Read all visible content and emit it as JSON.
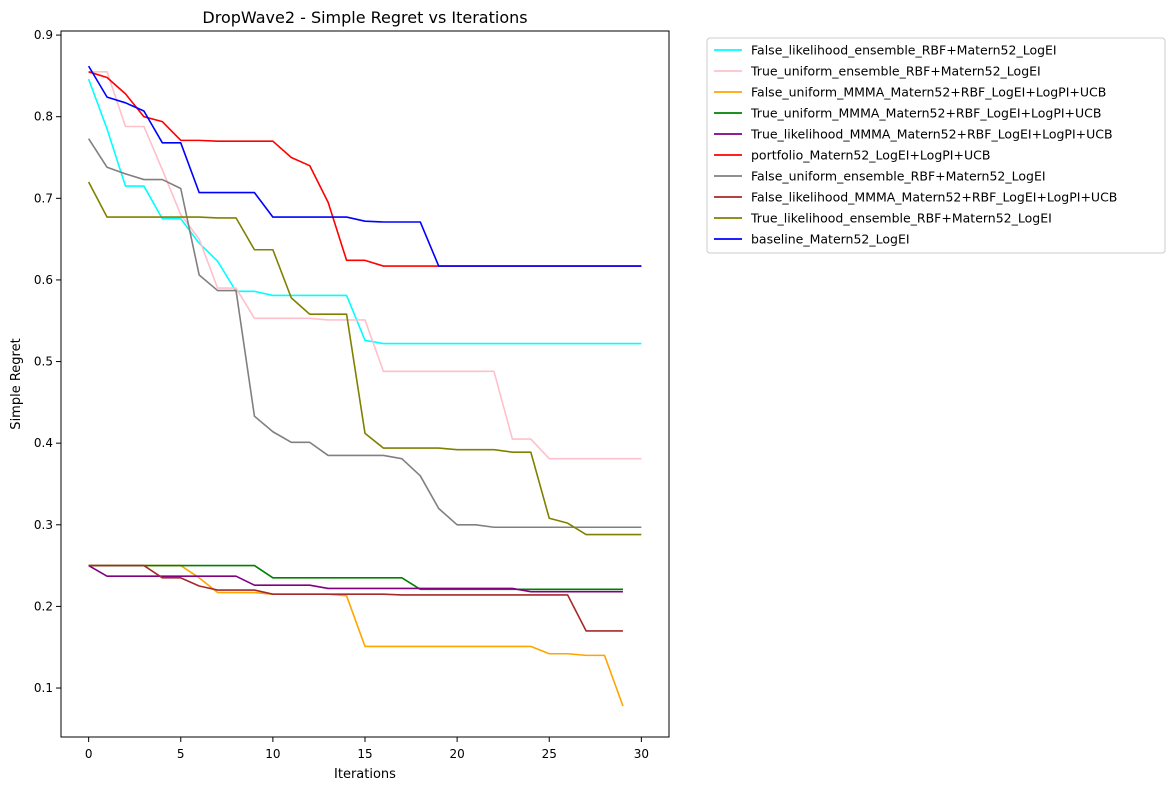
{
  "chart_data": {
    "type": "line",
    "title": "DropWave2 - Simple Regret vs Iterations",
    "xlabel": "Iterations",
    "ylabel": "Simple Regret",
    "xlim": [
      -1.5,
      31.5
    ],
    "ylim": [
      0.04,
      0.905
    ],
    "xticks": [
      0,
      5,
      10,
      15,
      20,
      25,
      30
    ],
    "yticks": [
      0.1,
      0.2,
      0.3,
      0.4,
      0.5,
      0.6,
      0.7,
      0.8,
      0.9
    ],
    "ytick_labels": [
      "0.1",
      "0.2",
      "0.3",
      "0.4",
      "0.5",
      "0.6",
      "0.7",
      "0.8",
      "0.9"
    ],
    "grid": false,
    "legend_position": "outside-top-right",
    "series": [
      {
        "name": "False_likelihood_ensemble_RBF+Matern52_LogEI",
        "color": "#00ffff",
        "x": [
          0,
          1,
          2,
          3,
          4,
          5,
          6,
          7,
          8,
          9,
          10,
          11,
          12,
          13,
          14,
          15,
          16,
          17,
          18,
          19,
          20,
          21,
          22,
          23,
          24,
          25,
          26,
          27,
          28,
          29,
          30
        ],
        "y": [
          0.846,
          0.785,
          0.715,
          0.715,
          0.675,
          0.675,
          0.645,
          0.623,
          0.586,
          0.586,
          0.581,
          0.581,
          0.581,
          0.581,
          0.581,
          0.526,
          0.522,
          0.522,
          0.522,
          0.522,
          0.522,
          0.522,
          0.522,
          0.522,
          0.522,
          0.522,
          0.522,
          0.522,
          0.522,
          0.522,
          0.522
        ]
      },
      {
        "name": "True_uniform_ensemble_RBF+Matern52_LogEI",
        "color": "#ffc0cb",
        "x": [
          0,
          1,
          2,
          3,
          4,
          5,
          6,
          7,
          8,
          9,
          10,
          11,
          12,
          13,
          14,
          15,
          16,
          17,
          18,
          19,
          20,
          21,
          22,
          23,
          24,
          25,
          26,
          27,
          28,
          29,
          30
        ],
        "y": [
          0.855,
          0.855,
          0.788,
          0.788,
          0.735,
          0.68,
          0.65,
          0.59,
          0.59,
          0.553,
          0.553,
          0.553,
          0.553,
          0.551,
          0.551,
          0.551,
          0.488,
          0.488,
          0.488,
          0.488,
          0.488,
          0.488,
          0.488,
          0.405,
          0.405,
          0.381,
          0.381,
          0.381,
          0.381,
          0.381,
          0.381
        ]
      },
      {
        "name": "False_uniform_MMMA_Matern52+RBF_LogEI+LogPI+UCB",
        "color": "#ffa500",
        "x": [
          0,
          1,
          2,
          3,
          4,
          5,
          6,
          7,
          8,
          9,
          10,
          11,
          12,
          13,
          14,
          15,
          16,
          17,
          18,
          19,
          20,
          21,
          22,
          23,
          24,
          25,
          26,
          27,
          28,
          29
        ],
        "y": [
          0.25,
          0.25,
          0.25,
          0.25,
          0.25,
          0.25,
          0.235,
          0.217,
          0.217,
          0.217,
          0.215,
          0.215,
          0.215,
          0.215,
          0.213,
          0.151,
          0.151,
          0.151,
          0.151,
          0.151,
          0.151,
          0.151,
          0.151,
          0.151,
          0.151,
          0.142,
          0.142,
          0.14,
          0.14,
          0.078
        ]
      },
      {
        "name": "True_uniform_MMMA_Matern52+RBF_LogEI+LogPI+UCB",
        "color": "#008000",
        "x": [
          0,
          1,
          2,
          3,
          4,
          5,
          6,
          7,
          8,
          9,
          10,
          11,
          12,
          13,
          14,
          15,
          16,
          17,
          18,
          19,
          20,
          21,
          22,
          23,
          24,
          25,
          26,
          27,
          28,
          29
        ],
        "y": [
          0.25,
          0.25,
          0.25,
          0.25,
          0.25,
          0.25,
          0.25,
          0.25,
          0.25,
          0.25,
          0.235,
          0.235,
          0.235,
          0.235,
          0.235,
          0.235,
          0.235,
          0.235,
          0.221,
          0.221,
          0.221,
          0.221,
          0.221,
          0.221,
          0.221,
          0.221,
          0.221,
          0.221,
          0.221,
          0.221
        ]
      },
      {
        "name": "True_likelihood_MMMA_Matern52+RBF_LogEI+LogPI+UCB",
        "color": "#800080",
        "x": [
          0,
          1,
          2,
          3,
          4,
          5,
          6,
          7,
          8,
          9,
          10,
          11,
          12,
          13,
          14,
          15,
          16,
          17,
          18,
          19,
          20,
          21,
          22,
          23,
          24,
          25,
          26,
          27,
          28,
          29
        ],
        "y": [
          0.25,
          0.237,
          0.237,
          0.237,
          0.237,
          0.237,
          0.237,
          0.237,
          0.237,
          0.226,
          0.226,
          0.226,
          0.226,
          0.222,
          0.222,
          0.222,
          0.222,
          0.222,
          0.222,
          0.222,
          0.222,
          0.222,
          0.222,
          0.222,
          0.218,
          0.218,
          0.218,
          0.218,
          0.218,
          0.218
        ]
      },
      {
        "name": "portfolio_Matern52_LogEI+LogPI+UCB",
        "color": "#ff0000",
        "x": [
          0,
          1,
          2,
          3,
          4,
          5,
          6,
          7,
          8,
          9,
          10,
          11,
          12,
          13,
          14,
          15,
          16,
          17,
          18,
          19,
          20,
          21,
          22,
          23,
          24,
          25,
          26,
          27,
          28,
          29,
          30
        ],
        "y": [
          0.855,
          0.848,
          0.828,
          0.8,
          0.794,
          0.771,
          0.771,
          0.77,
          0.77,
          0.77,
          0.77,
          0.75,
          0.74,
          0.695,
          0.624,
          0.624,
          0.617,
          0.617,
          0.617,
          0.617,
          0.617,
          0.617,
          0.617,
          0.617,
          0.617,
          0.617,
          0.617,
          0.617,
          0.617,
          0.617,
          0.617
        ]
      },
      {
        "name": "False_uniform_ensemble_RBF+Matern52_LogEI",
        "color": "#808080",
        "x": [
          0,
          1,
          2,
          3,
          4,
          5,
          6,
          7,
          8,
          9,
          10,
          11,
          12,
          13,
          14,
          15,
          16,
          17,
          18,
          19,
          20,
          21,
          22,
          23,
          24,
          25,
          26,
          27,
          28,
          29,
          30
        ],
        "y": [
          0.773,
          0.738,
          0.73,
          0.723,
          0.723,
          0.712,
          0.606,
          0.587,
          0.587,
          0.433,
          0.414,
          0.401,
          0.401,
          0.385,
          0.385,
          0.385,
          0.385,
          0.381,
          0.36,
          0.32,
          0.3,
          0.3,
          0.297,
          0.297,
          0.297,
          0.297,
          0.297,
          0.297,
          0.297,
          0.297,
          0.297
        ]
      },
      {
        "name": "False_likelihood_MMMA_Matern52+RBF_LogEI+LogPI+UCB",
        "color": "#a52a2a",
        "x": [
          0,
          1,
          2,
          3,
          4,
          5,
          6,
          7,
          8,
          9,
          10,
          11,
          12,
          13,
          14,
          15,
          16,
          17,
          18,
          19,
          20,
          21,
          22,
          23,
          24,
          25,
          26,
          27,
          28,
          29
        ],
        "y": [
          0.25,
          0.25,
          0.25,
          0.25,
          0.235,
          0.235,
          0.225,
          0.22,
          0.22,
          0.22,
          0.215,
          0.215,
          0.215,
          0.215,
          0.215,
          0.215,
          0.215,
          0.214,
          0.214,
          0.214,
          0.214,
          0.214,
          0.214,
          0.214,
          0.214,
          0.214,
          0.214,
          0.17,
          0.17,
          0.17
        ]
      },
      {
        "name": "True_likelihood_ensemble_RBF+Matern52_LogEI",
        "color": "#808000",
        "x": [
          0,
          1,
          2,
          3,
          4,
          5,
          6,
          7,
          8,
          9,
          10,
          11,
          12,
          13,
          14,
          15,
          16,
          17,
          18,
          19,
          20,
          21,
          22,
          23,
          24,
          25,
          26,
          27,
          28,
          29,
          30
        ],
        "y": [
          0.72,
          0.677,
          0.677,
          0.677,
          0.677,
          0.677,
          0.677,
          0.676,
          0.676,
          0.637,
          0.637,
          0.578,
          0.558,
          0.558,
          0.558,
          0.412,
          0.394,
          0.394,
          0.394,
          0.394,
          0.392,
          0.392,
          0.392,
          0.389,
          0.389,
          0.308,
          0.302,
          0.288,
          0.288,
          0.288,
          0.288
        ]
      },
      {
        "name": "baseline_Matern52_LogEI",
        "color": "#0000ff",
        "x": [
          0,
          1,
          2,
          3,
          4,
          5,
          6,
          7,
          8,
          9,
          10,
          11,
          12,
          13,
          14,
          15,
          16,
          17,
          18,
          19,
          20,
          21,
          22,
          23,
          24,
          25,
          26,
          27,
          28,
          29,
          30
        ],
        "y": [
          0.862,
          0.824,
          0.817,
          0.807,
          0.768,
          0.768,
          0.707,
          0.707,
          0.707,
          0.707,
          0.677,
          0.677,
          0.677,
          0.677,
          0.677,
          0.672,
          0.671,
          0.671,
          0.671,
          0.617,
          0.617,
          0.617,
          0.617,
          0.617,
          0.617,
          0.617,
          0.617,
          0.617,
          0.617,
          0.617,
          0.617
        ]
      }
    ]
  }
}
